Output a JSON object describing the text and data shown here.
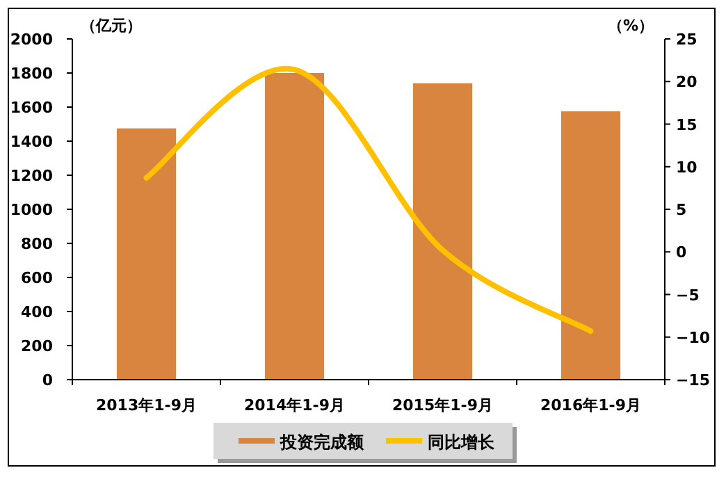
{
  "chart_data": {
    "type": "bar",
    "ylabel": "（亿元）",
    "y2label": "（%）",
    "categories": [
      "2013年1-9月",
      "2014年1-9月",
      "2015年1-9月",
      "2016年1-9月"
    ],
    "series": [
      {
        "name": "投资完成额",
        "color": "#d9843f",
        "values": [
          1475,
          1800,
          1740,
          1575
        ]
      },
      {
        "name": "同比增长",
        "type": "line",
        "axis": "y2",
        "color": "#ffc000",
        "values": [
          8.7,
          21.4,
          0.2,
          -9.3
        ]
      }
    ],
    "ylim": [
      0,
      2000
    ],
    "yticks": [
      0,
      200,
      400,
      600,
      800,
      1000,
      1200,
      1400,
      1600,
      1800,
      2000
    ],
    "y2lim": [
      -15,
      25
    ],
    "y2ticks": [
      -15,
      -10,
      -5,
      0,
      5,
      10,
      15,
      20,
      25
    ],
    "legend": "bottom"
  }
}
